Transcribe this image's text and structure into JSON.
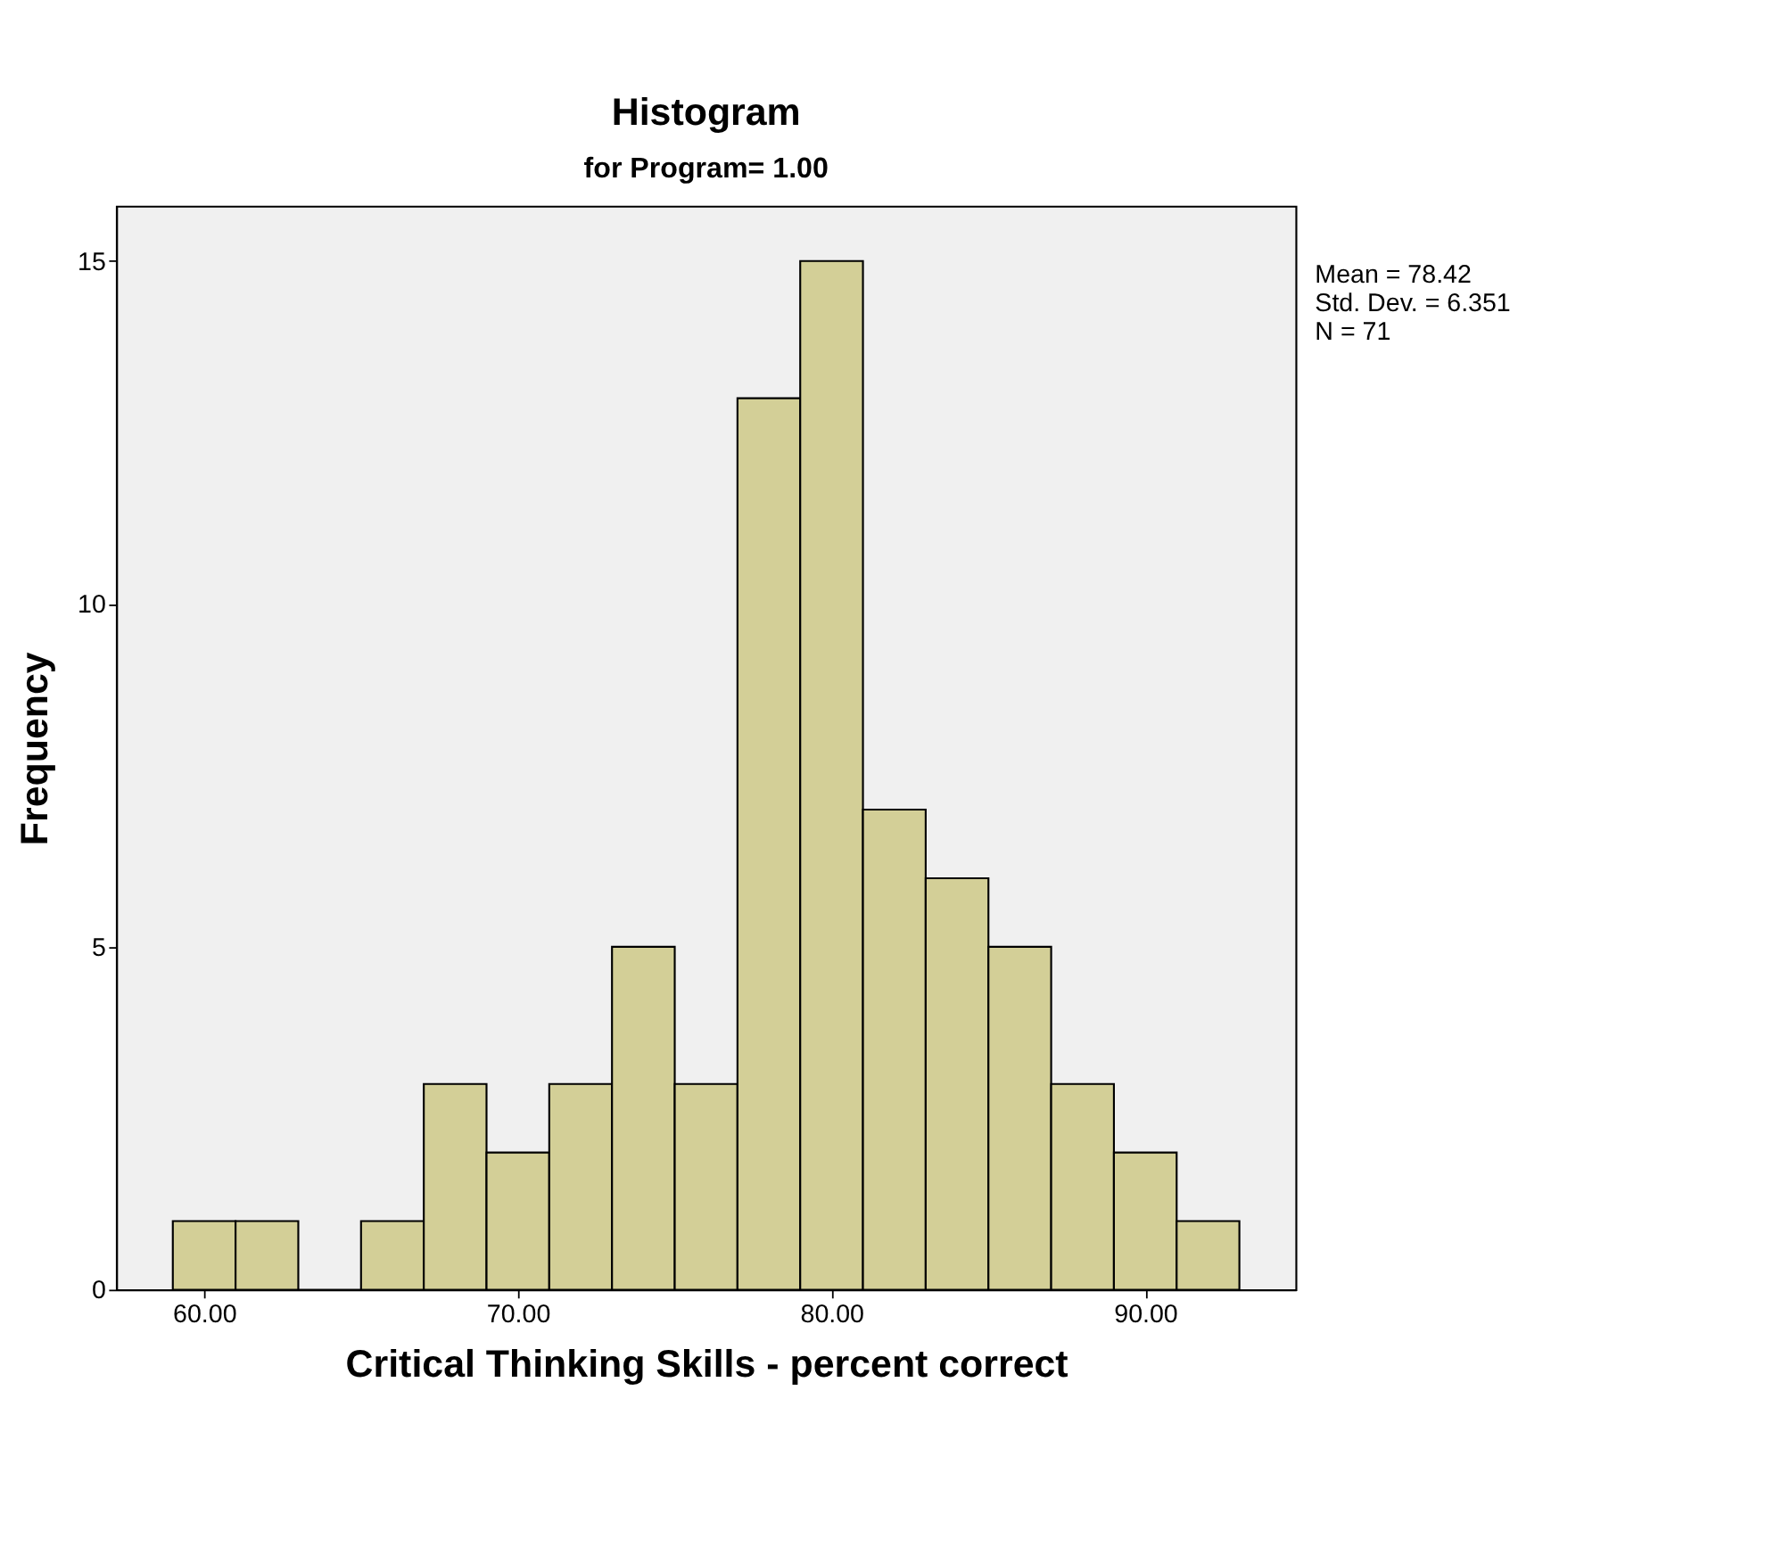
{
  "chart_data": {
    "type": "histogram",
    "title": "Histogram",
    "subtitle": "for Program= 1.00",
    "xlabel": "Critical Thinking Skills - percent correct",
    "ylabel": "Frequency",
    "bins": [
      59,
      61,
      63,
      65,
      67,
      69,
      71,
      73,
      75,
      77,
      79,
      81,
      83,
      85,
      87,
      89,
      91,
      93
    ],
    "values": [
      1,
      1,
      0,
      1,
      3,
      2,
      3,
      5,
      3,
      13,
      15,
      7,
      6,
      5,
      3,
      2,
      1
    ],
    "color": "#d3cf97",
    "xlim": [
      57.2,
      94.8
    ],
    "xticks": [
      {
        "value": 60,
        "label": "60.00"
      },
      {
        "value": 70,
        "label": "70.00"
      },
      {
        "value": 80,
        "label": "80.00"
      },
      {
        "value": 90,
        "label": "90.00"
      }
    ],
    "ylim": [
      0,
      15.8
    ],
    "yticks": [
      0,
      5,
      10,
      15
    ],
    "grid": false,
    "annotations": [
      "Mean = 78.42",
      "Std. Dev. = 6.351",
      "N = 71"
    ]
  }
}
